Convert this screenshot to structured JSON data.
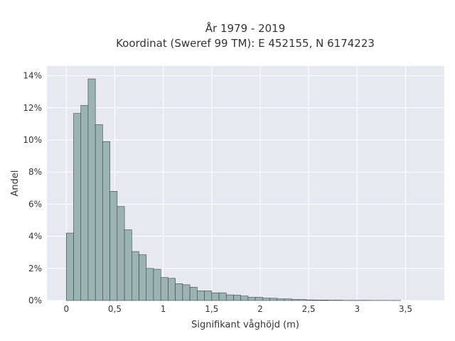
{
  "chart_data": {
    "type": "bar",
    "title": "År 1979 - 2019",
    "subtitle": "Koordinat (Sweref 99 TM): E 452155, N 6174223",
    "xlabel": "Signifikant våghöjd (m)",
    "ylabel": "Andel",
    "xlim": [
      -0.2,
      3.9
    ],
    "ylim": [
      0,
      14.6
    ],
    "x_ticks": [
      {
        "value": 0,
        "label": "0"
      },
      {
        "value": 0.5,
        "label": "0,5"
      },
      {
        "value": 1,
        "label": "1"
      },
      {
        "value": 1.5,
        "label": "1,5"
      },
      {
        "value": 2,
        "label": "2"
      },
      {
        "value": 2.5,
        "label": "2,5"
      },
      {
        "value": 3,
        "label": "3"
      },
      {
        "value": 3.5,
        "label": "3,5"
      }
    ],
    "y_ticks": [
      {
        "value": 0,
        "label": "0%"
      },
      {
        "value": 2,
        "label": "2%"
      },
      {
        "value": 4,
        "label": "4%"
      },
      {
        "value": 6,
        "label": "6%"
      },
      {
        "value": 8,
        "label": "8%"
      },
      {
        "value": 10,
        "label": "10%"
      },
      {
        "value": 12,
        "label": "12%"
      },
      {
        "value": 14,
        "label": "14%"
      }
    ],
    "bin_width": 0.075,
    "bin_start": 0.0,
    "values": [
      4.2,
      11.65,
      12.15,
      13.8,
      10.95,
      9.9,
      6.8,
      5.85,
      4.4,
      3.05,
      2.85,
      2.0,
      1.95,
      1.43,
      1.38,
      1.05,
      0.98,
      0.83,
      0.6,
      0.6,
      0.48,
      0.48,
      0.35,
      0.33,
      0.28,
      0.2,
      0.2,
      0.15,
      0.14,
      0.1,
      0.1,
      0.06,
      0.06,
      0.04,
      0.03,
      0.03,
      0.02,
      0.02,
      0.01,
      0.01,
      0.01,
      0.01,
      0.005,
      0.005,
      0.005,
      0.005
    ],
    "grid": true,
    "legend": "none",
    "colors": {
      "bar_fill": "#9bb3b3",
      "bar_stroke": "#3a4545",
      "plot_bg": "#e8e8f0",
      "grid": "#ffffff"
    }
  }
}
